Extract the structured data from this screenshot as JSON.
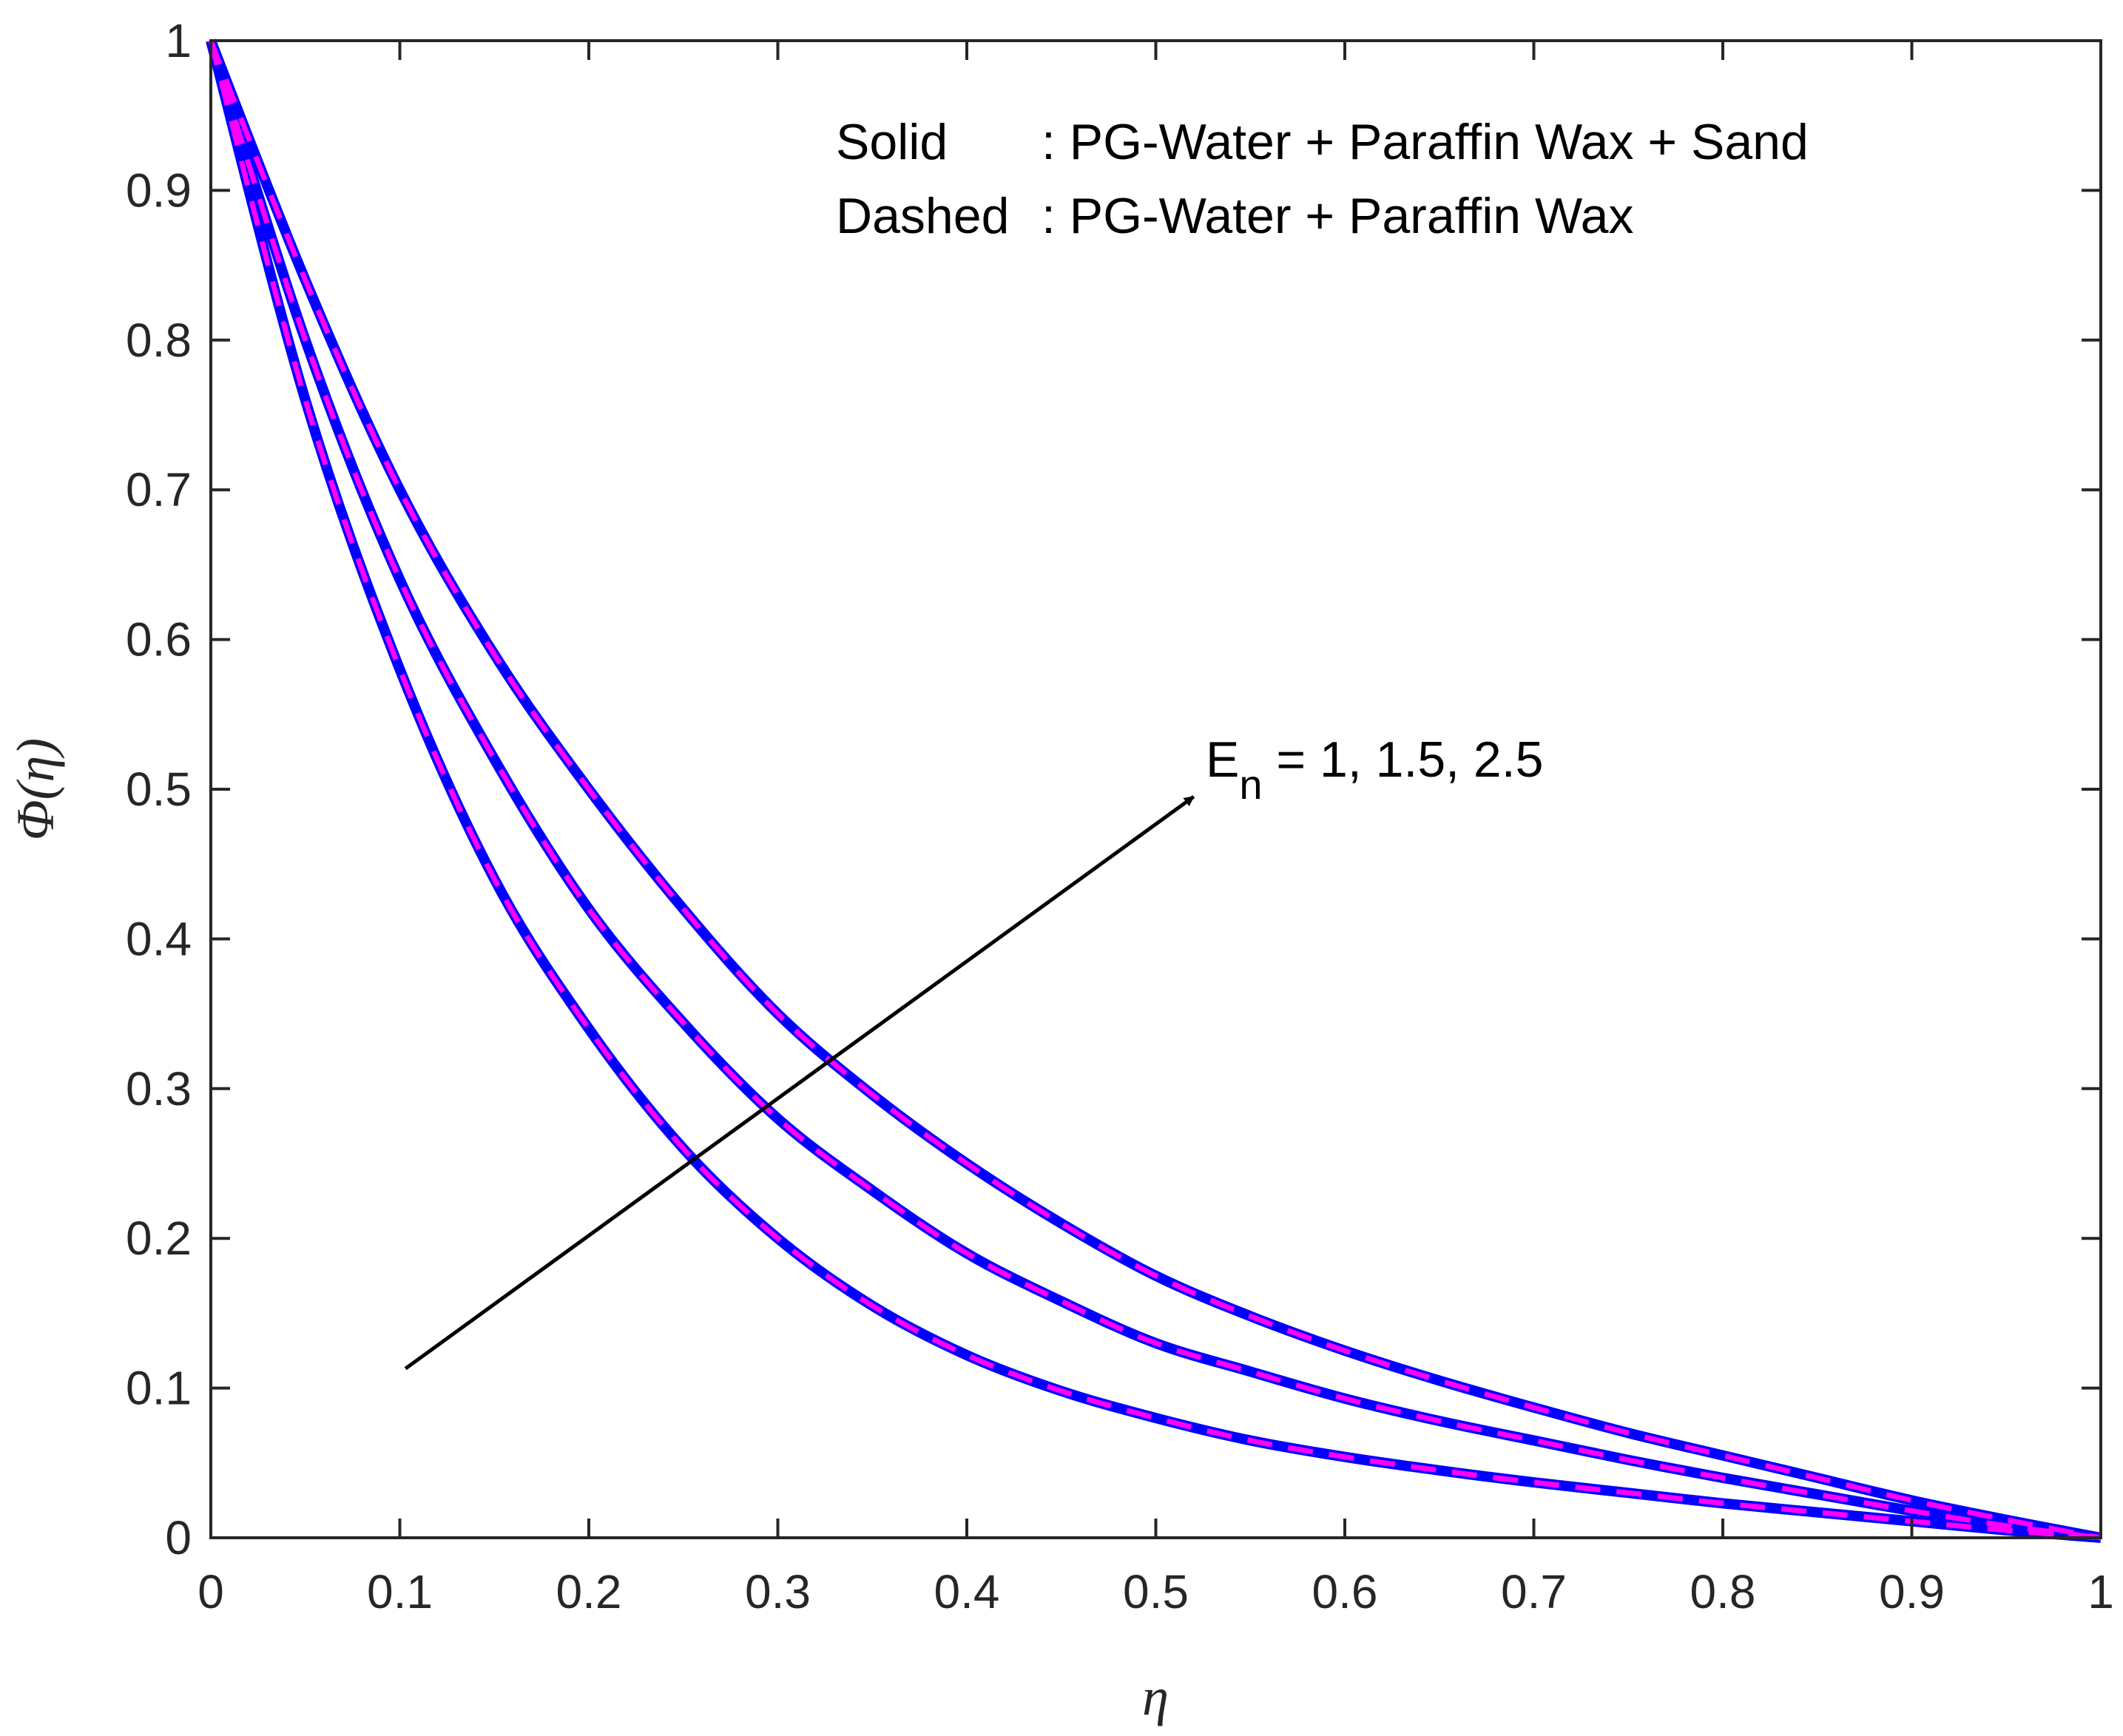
{
  "chart_data": {
    "type": "line",
    "xlabel": "η",
    "ylabel": "Φ(η)",
    "xlim": [
      0,
      1
    ],
    "ylim": [
      0,
      1
    ],
    "x_ticks": [
      "0",
      "0.1",
      "0.2",
      "0.3",
      "0.4",
      "0.5",
      "0.6",
      "0.7",
      "0.8",
      "0.9",
      "1"
    ],
    "y_ticks": [
      "0",
      "0.1",
      "0.2",
      "0.3",
      "0.4",
      "0.5",
      "0.6",
      "0.7",
      "0.8",
      "0.9",
      "1"
    ],
    "grid": false,
    "legend_lines": {
      "solid_label": "Solid",
      "solid_desc": ": PG-Water + Paraffin Wax + Sand",
      "dashed_label": "Dashed",
      "dashed_desc": ": PG-Water + Paraffin Wax"
    },
    "annotation": {
      "symbol": "E",
      "subscript": "n",
      "values_text": " = 1, 1.5, 2.5",
      "arrow_from": [
        0.103,
        0.113
      ],
      "arrow_to": [
        0.52,
        0.495
      ]
    },
    "x": [
      0,
      0.05,
      0.1,
      0.15,
      0.2,
      0.25,
      0.3,
      0.35,
      0.4,
      0.45,
      0.5,
      0.55,
      0.6,
      0.65,
      0.7,
      0.75,
      0.8,
      0.85,
      0.9,
      0.95,
      1.0
    ],
    "series": [
      {
        "name": "E_n = 1 (Solid: PG-Water + Paraffin Wax + Sand)",
        "color": "#0000ff",
        "style": "solid",
        "values": [
          1.0,
          0.76,
          0.58,
          0.44,
          0.34,
          0.26,
          0.2,
          0.155,
          0.122,
          0.098,
          0.08,
          0.065,
          0.054,
          0.045,
          0.037,
          0.03,
          0.023,
          0.017,
          0.011,
          0.005,
          0.0
        ]
      },
      {
        "name": "E_n = 1.5 (Solid: PG-Water + Paraffin Wax + Sand)",
        "color": "#0000ff",
        "style": "solid",
        "values": [
          1.0,
          0.8,
          0.64,
          0.52,
          0.42,
          0.344,
          0.28,
          0.232,
          0.19,
          0.158,
          0.13,
          0.111,
          0.093,
          0.078,
          0.065,
          0.052,
          0.04,
          0.029,
          0.018,
          0.008,
          0.0
        ]
      },
      {
        "name": "E_n = 2.5 (Solid: PG-Water + Paraffin Wax + Sand)",
        "color": "#0000ff",
        "style": "solid",
        "values": [
          1.0,
          0.84,
          0.7,
          0.59,
          0.5,
          0.42,
          0.35,
          0.296,
          0.25,
          0.21,
          0.175,
          0.148,
          0.125,
          0.105,
          0.087,
          0.07,
          0.055,
          0.04,
          0.025,
          0.012,
          0.0
        ]
      },
      {
        "name": "E_n = 1 (Dashed: PG-Water + Paraffin Wax)",
        "color": "#ff00ff",
        "style": "dashed",
        "values": [
          1.0,
          0.76,
          0.58,
          0.44,
          0.34,
          0.26,
          0.2,
          0.155,
          0.122,
          0.098,
          0.08,
          0.065,
          0.054,
          0.045,
          0.037,
          0.03,
          0.023,
          0.017,
          0.011,
          0.005,
          0.0
        ]
      },
      {
        "name": "E_n = 1.5 (Dashed: PG-Water + Paraffin Wax)",
        "color": "#ff00ff",
        "style": "dashed",
        "values": [
          1.0,
          0.8,
          0.64,
          0.52,
          0.42,
          0.344,
          0.28,
          0.232,
          0.19,
          0.158,
          0.13,
          0.111,
          0.093,
          0.078,
          0.065,
          0.052,
          0.04,
          0.029,
          0.018,
          0.008,
          0.0
        ]
      },
      {
        "name": "E_n = 2.5 (Dashed: PG-Water + Paraffin Wax)",
        "color": "#ff00ff",
        "style": "dashed",
        "values": [
          1.0,
          0.84,
          0.7,
          0.59,
          0.5,
          0.42,
          0.35,
          0.296,
          0.25,
          0.21,
          0.175,
          0.148,
          0.125,
          0.105,
          0.087,
          0.07,
          0.055,
          0.04,
          0.025,
          0.012,
          0.0
        ]
      }
    ]
  }
}
